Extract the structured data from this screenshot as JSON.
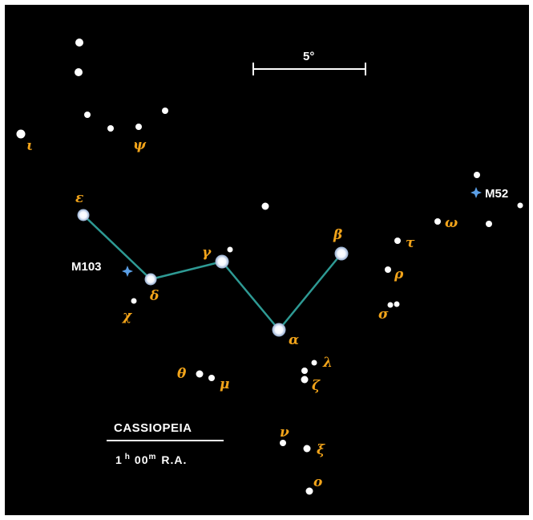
{
  "title": "CASSIOPEIA",
  "subtitle": {
    "hours": "1",
    "hours_unit": "h",
    "minutes": "00",
    "minutes_unit": "m",
    "suffix": "R.A."
  },
  "scale_label": "5°",
  "colors": {
    "background": "#000000",
    "star": "#ffffff",
    "star_halo": "#bfd4f2",
    "line": "#2e9a94",
    "greek_label": "#f2a41a",
    "cluster": "#5b9fe6",
    "text": "#ffffff"
  },
  "asterism_stars": [
    "epsilon",
    "delta",
    "gamma",
    "alpha",
    "beta"
  ],
  "greek_labels": {
    "iota": "ι",
    "psi": "ψ",
    "epsilon": "ε",
    "delta": "δ",
    "gamma": "γ",
    "beta": "β",
    "alpha": "α",
    "chi": "χ",
    "theta": "θ",
    "mu": "μ",
    "lambda": "λ",
    "zeta": "ζ",
    "nu": "ν",
    "xi": "ξ",
    "omicron": "ο",
    "tau": "τ",
    "rho": "ρ",
    "sigma": "σ",
    "omega": "ω"
  },
  "clusters": [
    "M103",
    "M52"
  ]
}
